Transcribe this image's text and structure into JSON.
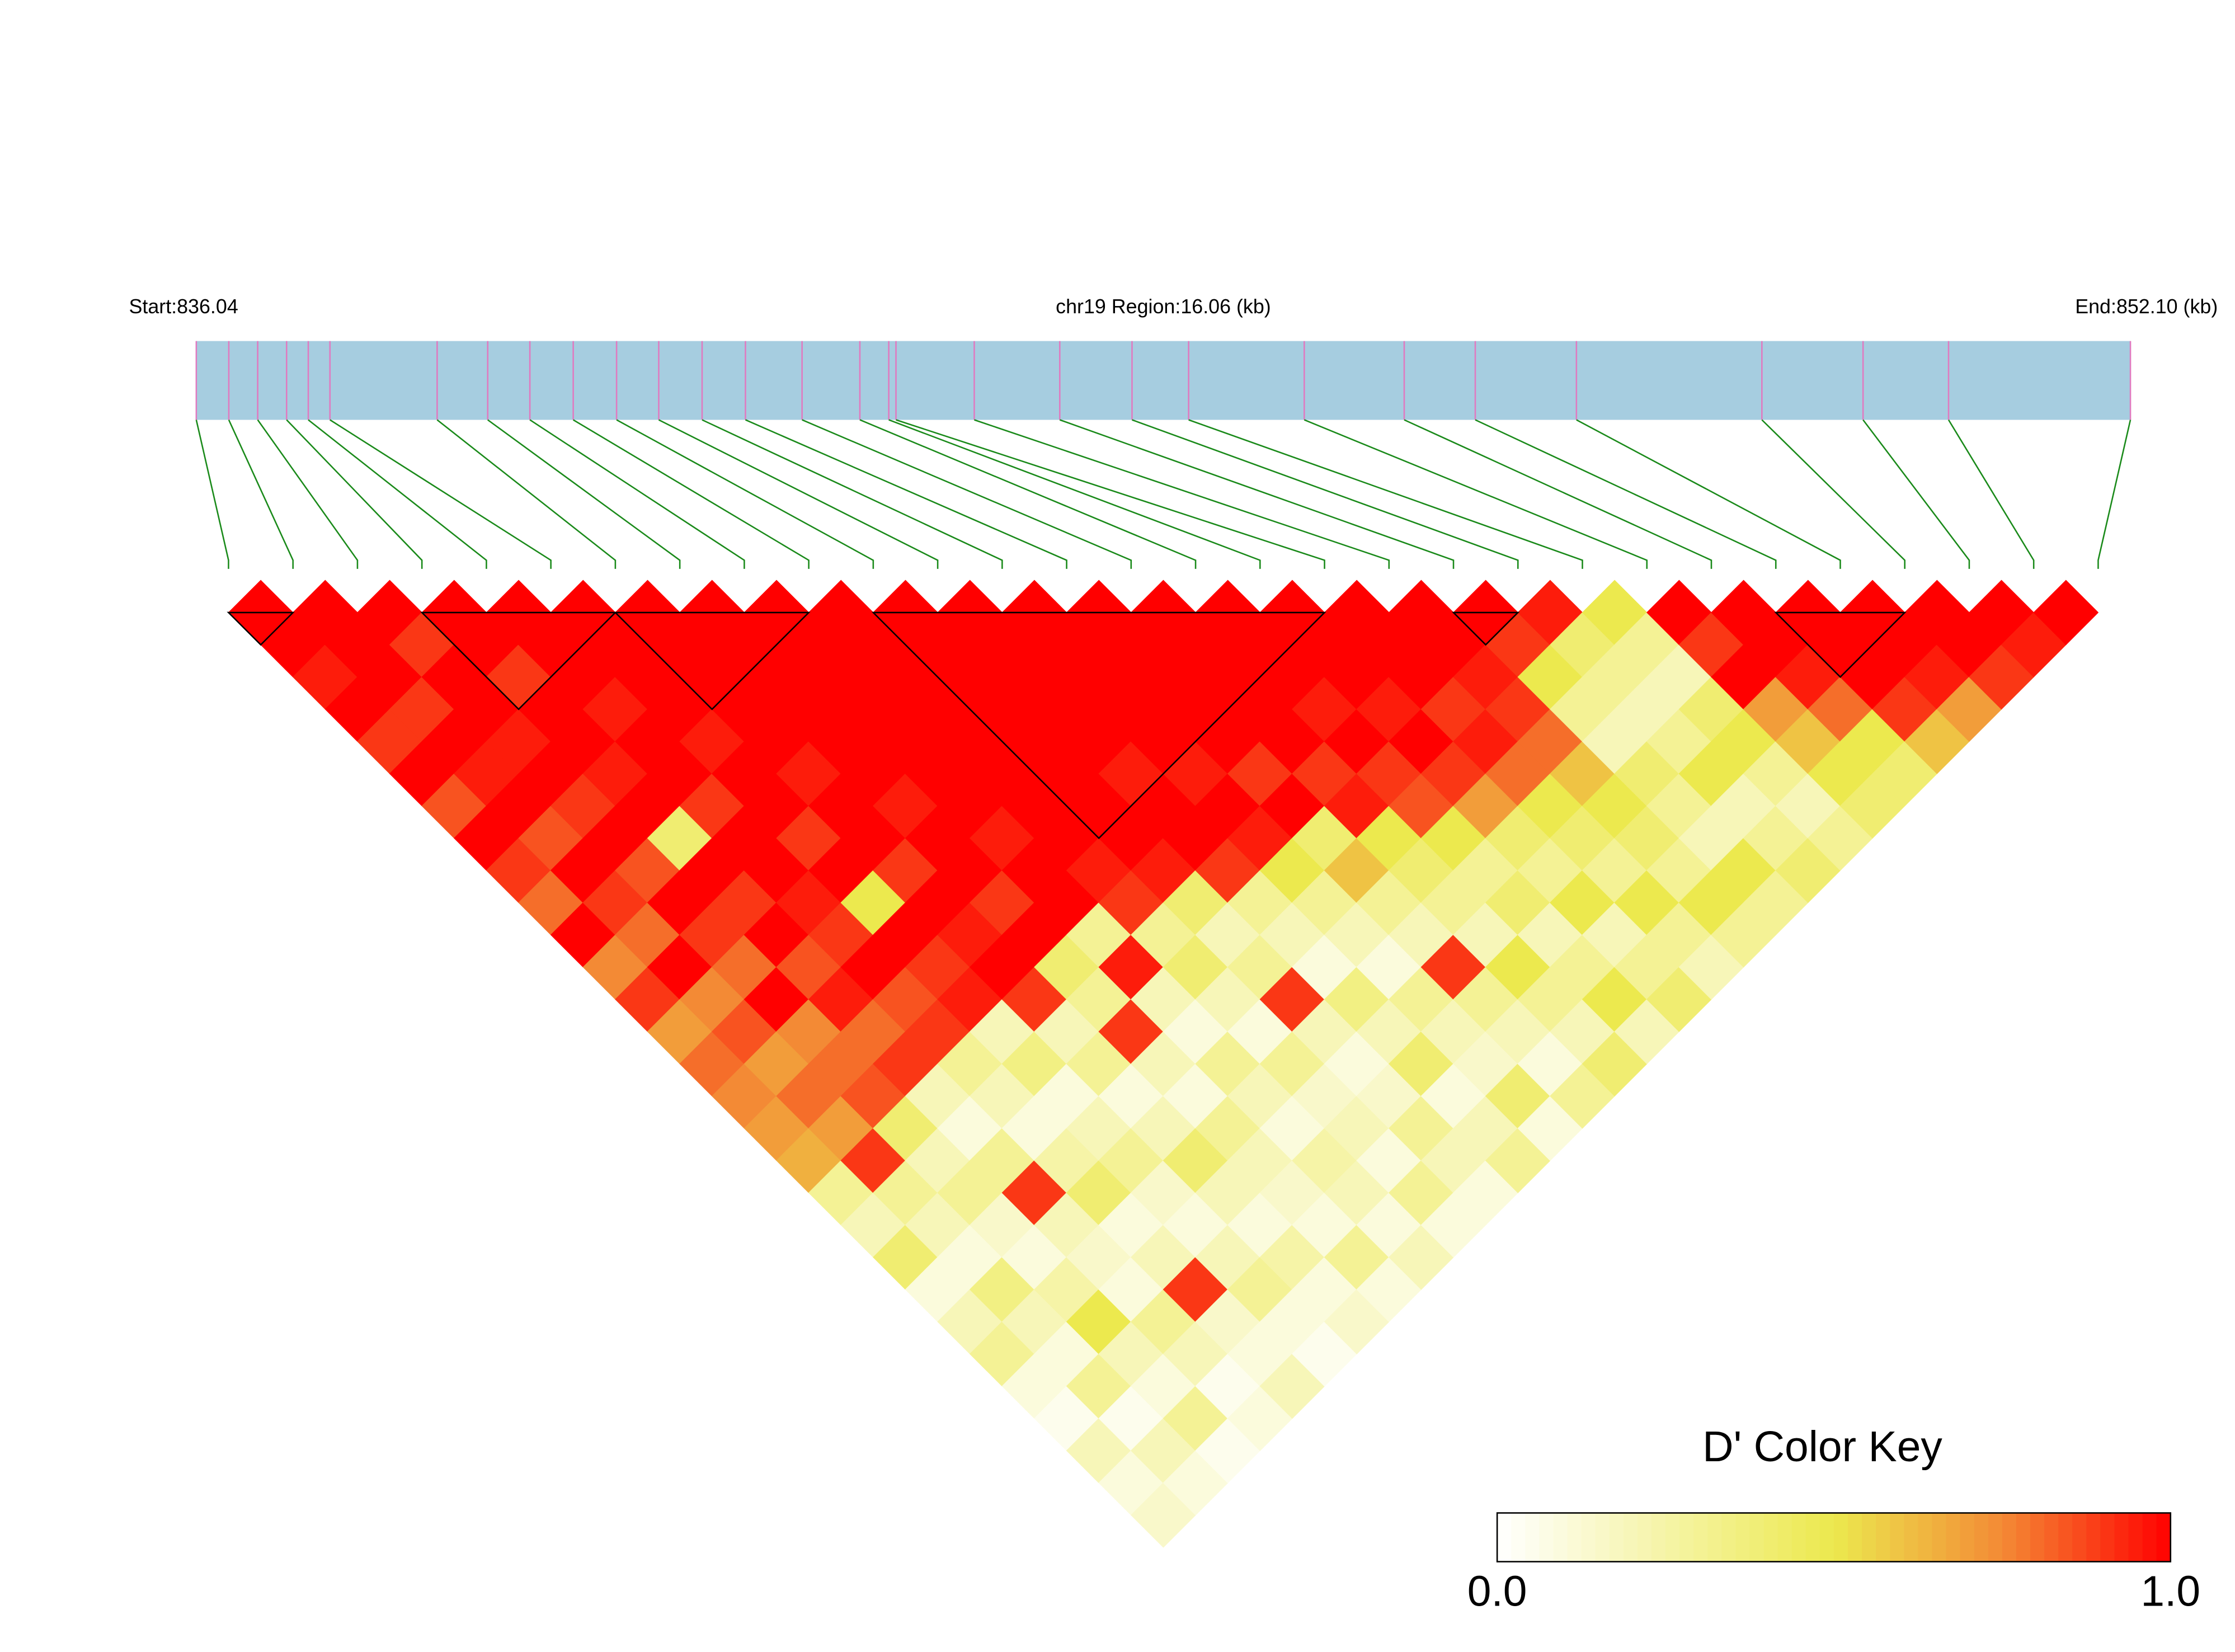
{
  "chart_data": {
    "type": "ld_heatmap",
    "start_label": "Start:836.04",
    "region_label": "chr19 Region:16.06 (kb)",
    "end_label": "End:852.10 (kb)",
    "xlim": [
      836.04,
      852.1
    ],
    "snp_positions": [
      836.04,
      836.31,
      836.55,
      836.79,
      836.97,
      837.15,
      838.04,
      838.46,
      838.81,
      839.17,
      839.53,
      839.88,
      840.24,
      840.6,
      841.07,
      841.55,
      841.79,
      841.85,
      842.5,
      843.21,
      843.81,
      844.28,
      845.24,
      846.07,
      846.66,
      847.5,
      849.04,
      849.88,
      850.59,
      852.1
    ],
    "bar_color": "#a6cde0",
    "snp_color": "#e07ac0",
    "link_color": "#1a8a1a",
    "block_color": "#000000",
    "dprime": [
      [
        1,
        1,
        0.95,
        1,
        0.9,
        1,
        0.85,
        1,
        0.9,
        0.8,
        1,
        0.75,
        0.9,
        0.7,
        0.8,
        0.75,
        0.7,
        0.65,
        0.3,
        0.2,
        0.4,
        0.1,
        0.2,
        0.3,
        0.1,
        0.05,
        0.2,
        0.1,
        0.15
      ],
      [
        1,
        1,
        1,
        0.9,
        1,
        0.95,
        1,
        0.85,
        1,
        0.9,
        0.8,
        1,
        0.75,
        0.85,
        0.7,
        0.8,
        0.7,
        0.9,
        0.3,
        0.2,
        0.1,
        0.35,
        0.2,
        0.1,
        0.3,
        0.05,
        0.2,
        0.1
      ],
      [
        1,
        0.9,
        1,
        1,
        0.95,
        1,
        0.9,
        1,
        0.85,
        1,
        0.9,
        0.8,
        1,
        0.75,
        0.8,
        0.85,
        0.4,
        0.2,
        0.3,
        0.15,
        0.1,
        0.25,
        0.5,
        0.2,
        0.1,
        0.3,
        0.05
      ],
      [
        1,
        1,
        0.9,
        1,
        1,
        0.95,
        1,
        0.4,
        1,
        0.9,
        1,
        0.85,
        0.95,
        0.8,
        0.9,
        0.2,
        0.1,
        0.3,
        0.9,
        0.2,
        0.15,
        0.1,
        0.3,
        0.2,
        0.05,
        0.1
      ],
      [
        1,
        1,
        1,
        0.95,
        1,
        1,
        0.9,
        1,
        1,
        0.95,
        0.9,
        1,
        0.85,
        0.9,
        0.3,
        0.2,
        0.1,
        0.25,
        0.4,
        0.1,
        0.2,
        0.9,
        0.15,
        0.1,
        0.2
      ],
      [
        1,
        1,
        1,
        1,
        0.95,
        1,
        1,
        0.9,
        1,
        0.5,
        1,
        0.9,
        0.95,
        0.2,
        0.35,
        0.1,
        0.2,
        0.3,
        0.15,
        0.1,
        0.2,
        0.3,
        0.1,
        0.05
      ],
      [
        1,
        1,
        1,
        1,
        1,
        0.95,
        1,
        1,
        0.9,
        1,
        0.95,
        1,
        0.9,
        0.2,
        0.3,
        0.1,
        0.2,
        0.4,
        0.2,
        0.1,
        0.25,
        0.1,
        0.15
      ],
      [
        1,
        1,
        1,
        1,
        1,
        1,
        0.95,
        1,
        1,
        0.9,
        1,
        0.4,
        0.3,
        0.9,
        0.2,
        0.1,
        0.3,
        0.2,
        0.15,
        0.1,
        0.3,
        0.1
      ],
      [
        1,
        1,
        1,
        1,
        1,
        1,
        1,
        0.95,
        1,
        1,
        0.3,
        0.95,
        0.2,
        0.1,
        0.3,
        0.2,
        0.1,
        0.25,
        0.2,
        0.1,
        0.2
      ],
      [
        1,
        1,
        1,
        1,
        1,
        1,
        1,
        1,
        0.95,
        0.9,
        0.3,
        0.4,
        0.2,
        0.1,
        0.3,
        0.15,
        0.2,
        0.1,
        0.3,
        0.1
      ],
      [
        1,
        1,
        1,
        1,
        1,
        1,
        1,
        1,
        0.95,
        0.4,
        0.2,
        0.3,
        0.9,
        0.2,
        0.1,
        0.15,
        0.3,
        0.2,
        0.1
      ],
      [
        1,
        1,
        1,
        1,
        1,
        0.95,
        1,
        1,
        0.9,
        0.3,
        0.2,
        0.1,
        0.35,
        0.2,
        0.4,
        0.1,
        0.2,
        0.3
      ],
      [
        1,
        1,
        1,
        1,
        1,
        0.95,
        1,
        0.95,
        0.5,
        0.3,
        0.2,
        0.1,
        0.3,
        0.2,
        0.15,
        0.4,
        0.1
      ],
      [
        1,
        1,
        1,
        1,
        1,
        0.9,
        1,
        0.4,
        0.6,
        0.3,
        0.2,
        0.9,
        0.3,
        0.2,
        0.1,
        0.3
      ],
      [
        1,
        1,
        1,
        1,
        1,
        0.9,
        0.95,
        0.5,
        0.4,
        0.3,
        0.2,
        0.5,
        0.3,
        0.2,
        0.4
      ],
      [
        1,
        1,
        1,
        0.95,
        1,
        0.9,
        0.85,
        0.5,
        0.3,
        0.4,
        0.2,
        0.3,
        0.5,
        0.2
      ],
      [
        1,
        1,
        1,
        0.95,
        1,
        0.9,
        0.7,
        0.4,
        0.3,
        0.5,
        0.2,
        0.3,
        0.4
      ],
      [
        1,
        1,
        1,
        0.9,
        0.95,
        0.8,
        0.5,
        0.4,
        0.3,
        0.5,
        0.3,
        0.2
      ],
      [
        1,
        1,
        0.95,
        0.9,
        0.8,
        0.6,
        0.5,
        0.4,
        0.3,
        0.5,
        0.3
      ],
      [
        1,
        0.9,
        0.5,
        0.3,
        0.2,
        0.4,
        0.3,
        0.2,
        0.5,
        0.3
      ],
      [
        0.95,
        0.4,
        0.3,
        0.2,
        0.3,
        0.5,
        0.2,
        0.3,
        0.4
      ],
      [
        0.5,
        0.3,
        0.2,
        0.4,
        0.5,
        0.3,
        0.2,
        0.3
      ],
      [
        1,
        0.9,
        1,
        0.7,
        0.6,
        0.5,
        0.4
      ],
      [
        1,
        1,
        0.95,
        0.8,
        0.5,
        0.4
      ],
      [
        1,
        1,
        1,
        0.9,
        0.6
      ],
      [
        1,
        1,
        0.95,
        0.7
      ],
      [
        1,
        1,
        0.9
      ],
      [
        1,
        0.95
      ],
      [
        1
      ]
    ],
    "blocks": [
      [
        0,
        1
      ],
      [
        3,
        6
      ],
      [
        6,
        9
      ],
      [
        10,
        17
      ],
      [
        19,
        20
      ],
      [
        24,
        26
      ]
    ],
    "colorscale": [
      [
        0,
        "#ffffff"
      ],
      [
        0.5,
        "#ece94e"
      ],
      [
        0.75,
        "#f38a35"
      ],
      [
        1,
        "#ff0000"
      ]
    ],
    "colorbar_title": "D' Color Key",
    "clim": [
      0,
      1
    ],
    "cticks": [
      {
        "value": 0,
        "label": "0.0"
      },
      {
        "value": 1,
        "label": "1.0"
      }
    ]
  }
}
